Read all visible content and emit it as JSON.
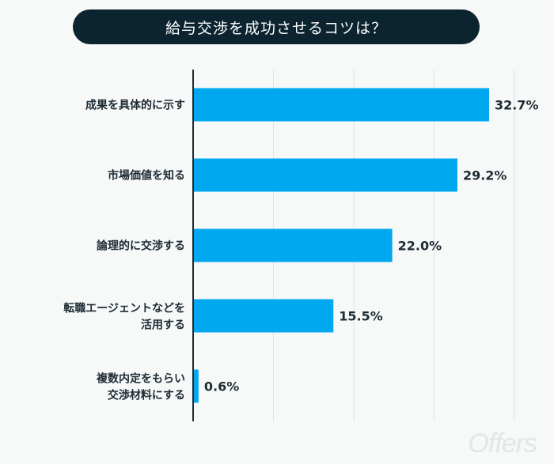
{
  "chart_data": {
    "type": "bar",
    "orientation": "horizontal",
    "title": "給与交渉を成功させるコツは？",
    "categories": [
      "成果を具体的に示す",
      "市場価値を知る",
      "論理的に交渉する",
      "転職エージェントなどを\n活用する",
      "複数内定をもらい\n交渉材料にする"
    ],
    "values": [
      32.7,
      29.2,
      22.0,
      15.5,
      0.6
    ],
    "data_labels": [
      "32.7%",
      "29.2%",
      "22.0%",
      "15.5%",
      "0.6%"
    ],
    "xlabel": "",
    "ylabel": "",
    "xlim": [
      0,
      35.5
    ],
    "grid": true,
    "bar_color": "#00a8f0",
    "title_bg": "#0b2430"
  },
  "logo": "Offers"
}
